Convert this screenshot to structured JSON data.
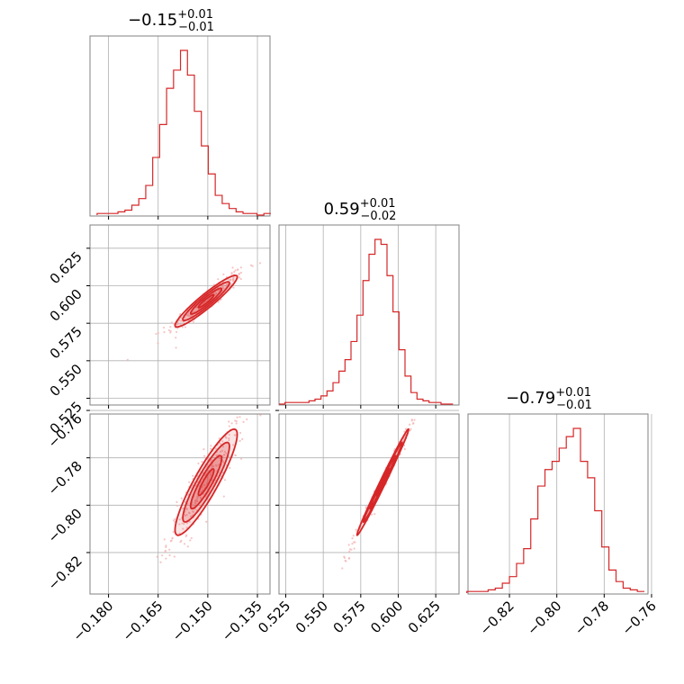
{
  "colors": {
    "accent": "#d62728",
    "light": "#f4b6b6",
    "grid": "#b0b0b0",
    "frame": "#808080"
  },
  "chart_data": {
    "type": "corner",
    "parameters": [
      {
        "median": -0.15,
        "range": [
          -0.1856,
          -0.1312
        ],
        "ticks": [
          "−0.180",
          "−0.165",
          "−0.150",
          "−0.135"
        ],
        "tick_values": [
          -0.18,
          -0.165,
          -0.15,
          -0.135
        ],
        "title": {
          "main": "−0.15",
          "sup": "+0.01",
          "sub": "−0.01"
        }
      },
      {
        "median": 0.59,
        "range": [
          0.5205,
          0.6405
        ],
        "ticks": [
          "0.525",
          "0.550",
          "0.575",
          "0.600",
          "0.625"
        ],
        "tick_values": [
          0.525,
          0.55,
          0.575,
          0.6,
          0.625
        ],
        "title": {
          "main": "0.59",
          "sup": "+0.01",
          "sub": "−0.02"
        }
      },
      {
        "median": -0.79,
        "range": [
          -0.8375,
          -0.7615
        ],
        "ticks": [
          "−0.82",
          "−0.80",
          "−0.78",
          "−0.76"
        ],
        "tick_values": [
          -0.82,
          -0.8,
          -0.78,
          -0.76
        ],
        "title": {
          "main": "−0.79",
          "sup": "+0.01",
          "sub": "−0.01"
        }
      }
    ],
    "histograms": [
      {
        "param": 0,
        "bin_centers": [
          -0.1824,
          -0.1803,
          -0.1782,
          -0.1761,
          -0.174,
          -0.1719,
          -0.1698,
          -0.1677,
          -0.1656,
          -0.1635,
          -0.1614,
          -0.1593,
          -0.1572,
          -0.1551,
          -0.153,
          -0.1509,
          -0.1488,
          -0.1467,
          -0.1446,
          -0.1425,
          -0.1404,
          -0.1383,
          -0.1362,
          -0.1341,
          -0.132
        ],
        "counts": [
          1,
          1,
          1,
          2,
          3,
          6,
          10,
          18,
          35,
          55,
          77,
          88,
          100,
          85,
          63,
          42,
          25,
          12,
          7,
          4,
          2,
          1,
          1,
          0,
          1
        ]
      },
      {
        "param": 1,
        "bin_centers": [
          0.5225,
          0.5265,
          0.5305,
          0.5345,
          0.5385,
          0.5425,
          0.5465,
          0.5505,
          0.5545,
          0.5585,
          0.5625,
          0.5665,
          0.5705,
          0.5745,
          0.5785,
          0.5825,
          0.5865,
          0.5905,
          0.5945,
          0.5985,
          0.6025,
          0.6065,
          0.6105,
          0.6145,
          0.6185,
          0.6225,
          0.6265,
          0.6305,
          0.6345
        ],
        "counts": [
          0,
          1,
          1,
          1,
          1,
          2,
          3,
          5,
          8,
          13,
          20,
          27,
          38,
          54,
          75,
          91,
          100,
          97,
          78,
          56,
          33,
          17,
          7,
          3,
          2,
          1,
          1,
          0,
          0
        ]
      },
      {
        "param": 2,
        "bin_centers": [
          -0.8365,
          -0.8335,
          -0.8305,
          -0.8275,
          -0.8245,
          -0.8215,
          -0.8185,
          -0.8155,
          -0.8125,
          -0.8095,
          -0.8065,
          -0.8035,
          -0.8005,
          -0.7975,
          -0.7945,
          -0.7915,
          -0.7885,
          -0.7855,
          -0.7825,
          -0.7795,
          -0.7765,
          -0.7735,
          -0.7705,
          -0.7675,
          -0.7645
        ],
        "counts": [
          1,
          1,
          1,
          2,
          3,
          6,
          10,
          18,
          27,
          45,
          65,
          75,
          80,
          88,
          95,
          100,
          80,
          70,
          50,
          28,
          14,
          7,
          3,
          2,
          1
        ]
      }
    ],
    "contours": [
      {
        "x_param": 0,
        "y_param": 1,
        "center": [
          -0.1505,
          0.5897
        ],
        "sigma": [
          0.0047,
          0.0086
        ],
        "rho": 0.94,
        "levels": [
          0.5,
          1.0,
          1.5,
          2.0
        ]
      },
      {
        "x_param": 0,
        "y_param": 2,
        "center": [
          -0.1505,
          -0.7903
        ],
        "sigma": [
          0.0047,
          0.0112
        ],
        "rho": 0.9,
        "levels": [
          0.5,
          1.0,
          1.5,
          2.0
        ]
      },
      {
        "x_param": 1,
        "y_param": 2,
        "center": [
          0.5897,
          -0.7903
        ],
        "sigma": [
          0.0086,
          0.0112
        ],
        "rho": 0.993,
        "levels": [
          0.5,
          1.0,
          1.5,
          2.0
        ]
      }
    ],
    "grid": true
  }
}
